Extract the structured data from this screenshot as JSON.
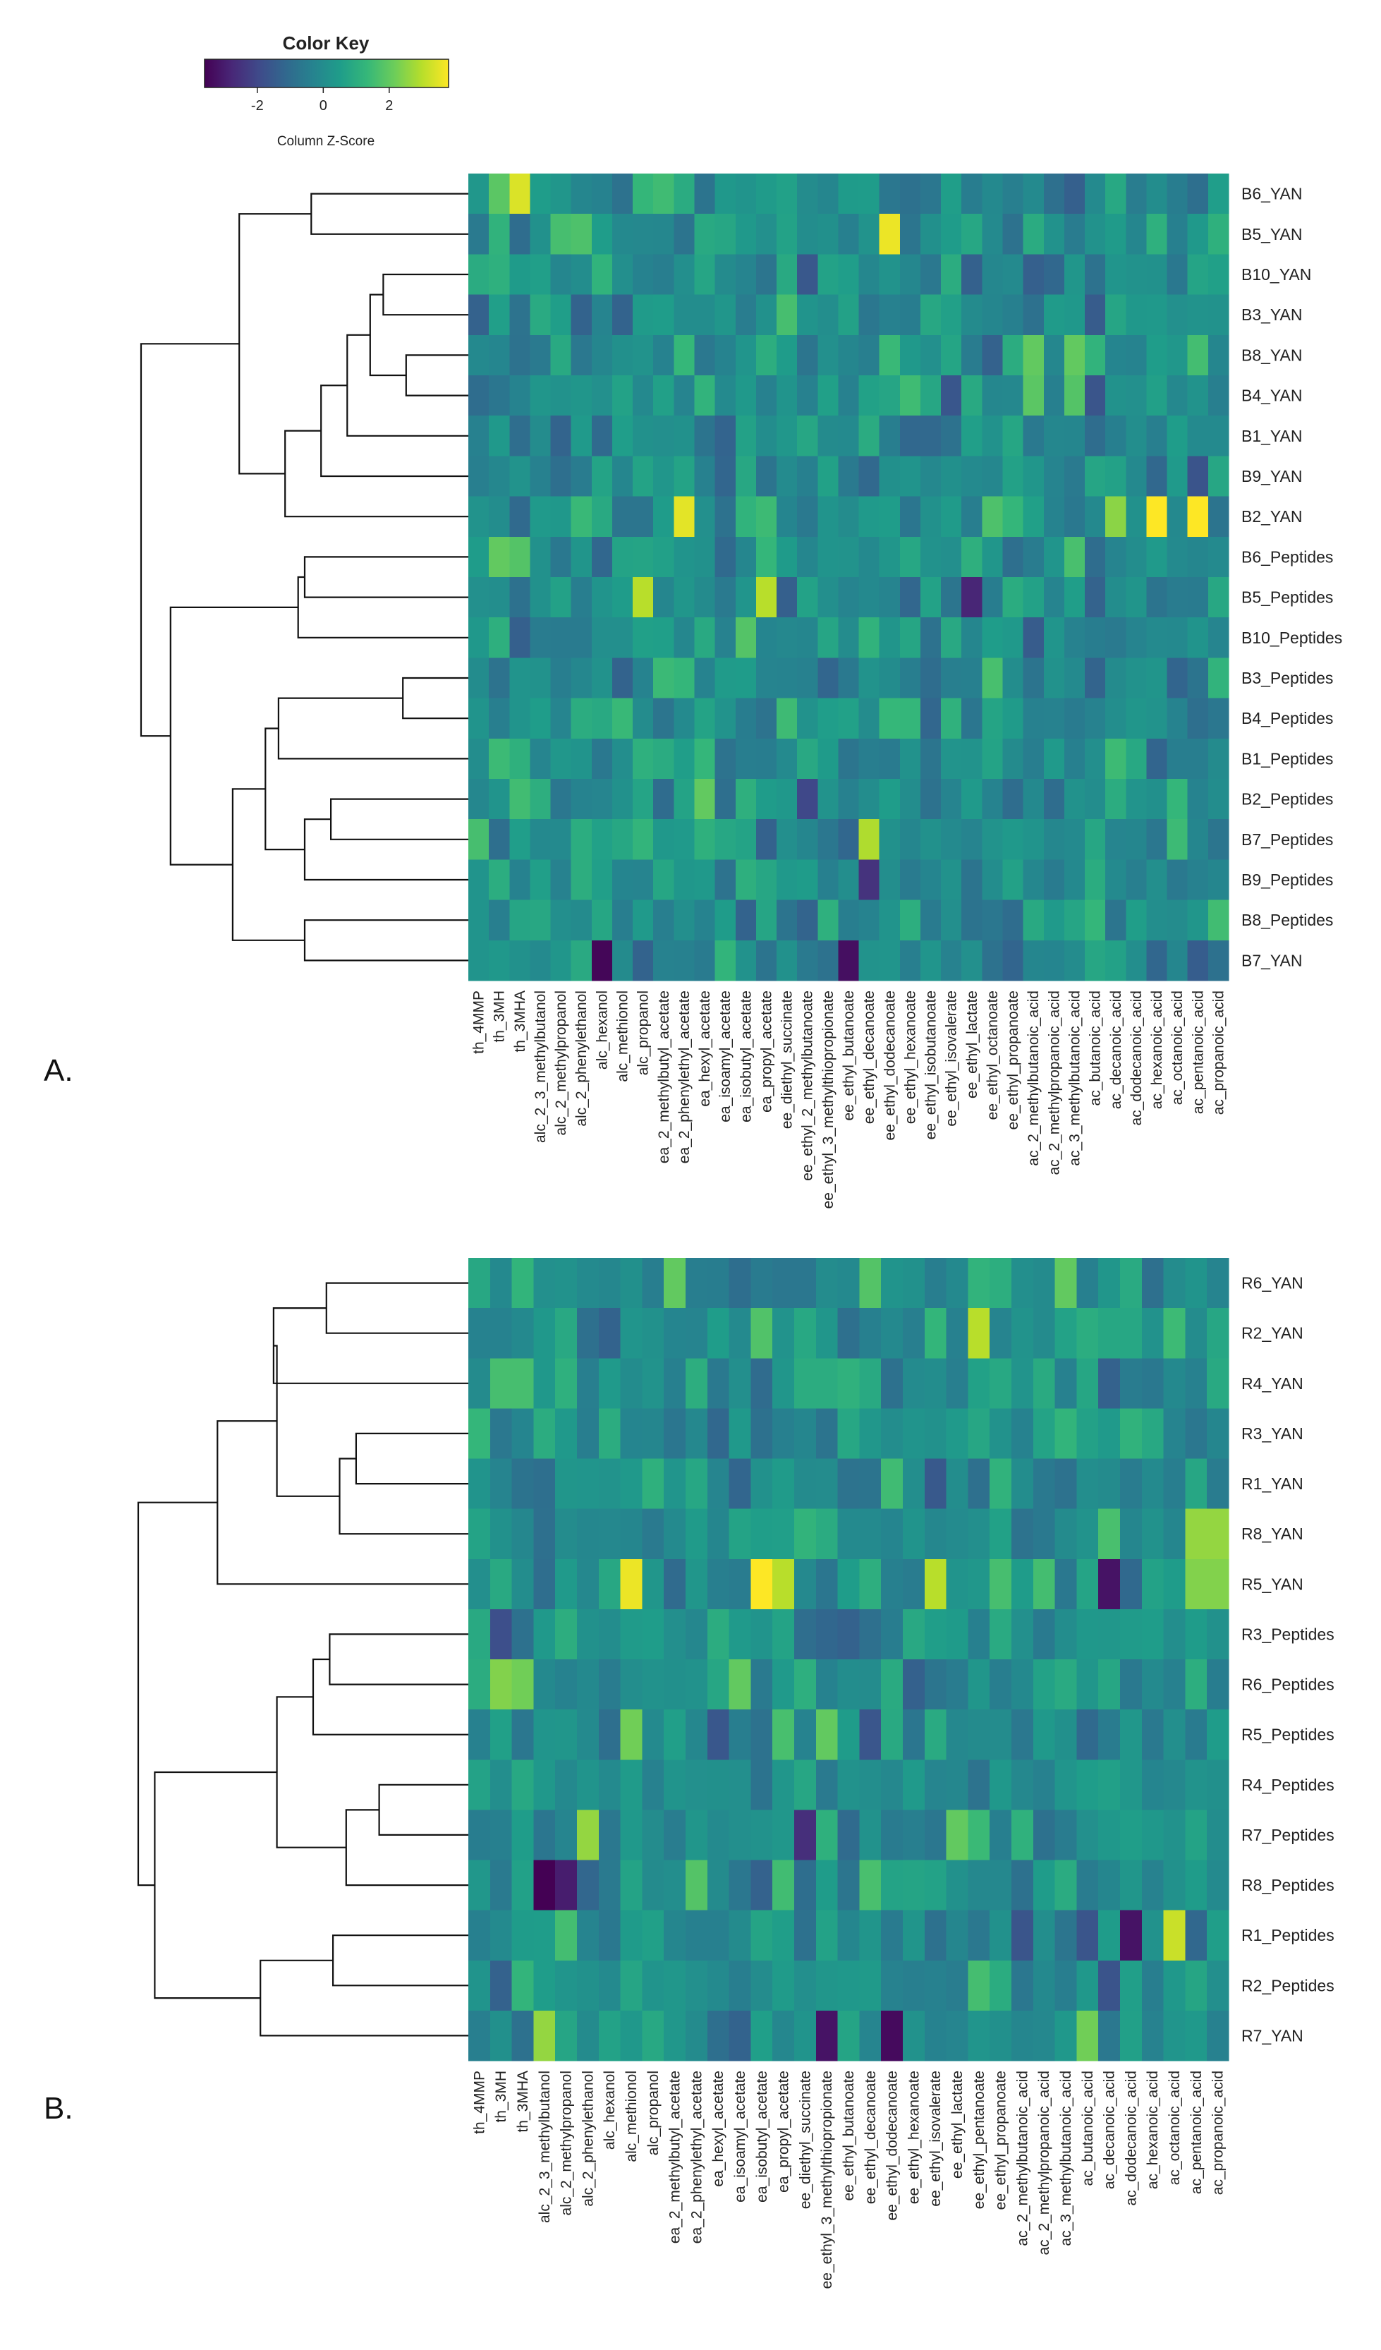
{
  "color_key": {
    "title": "Color Key",
    "axis_label": "Column Z-Score",
    "ticks": [
      "-2",
      "0",
      "2"
    ],
    "tick_values": [
      -2,
      0,
      2
    ],
    "range": [
      -3.6,
      3.8
    ],
    "palette": [
      "#440154",
      "#482777",
      "#3f4a8a",
      "#31688e",
      "#26838f",
      "#1f9d8a",
      "#35b779",
      "#6ccd5a",
      "#b6de2b",
      "#fde725"
    ]
  },
  "panels": [
    {
      "label": "A.",
      "rows": [
        "B6_YAN",
        "B5_YAN",
        "B10_YAN",
        "B3_YAN",
        "B8_YAN",
        "B4_YAN",
        "B1_YAN",
        "B9_YAN",
        "B2_YAN",
        "B6_Peptides",
        "B5_Peptides",
        "B10_Peptides",
        "B3_Peptides",
        "B4_Peptides",
        "B1_Peptides",
        "B2_Peptides",
        "B7_Peptides",
        "B9_Peptides",
        "B8_Peptides",
        "B7_YAN"
      ],
      "columns": [
        "th_4MMP",
        "th_3MH",
        "th_3MHA",
        "alc_2_3_methylbutanol",
        "alc_2_methylpropanol",
        "alc_2_phenylethanol",
        "alc_hexanol",
        "alc_methionol",
        "alc_propanol",
        "ea_2_methylbutyl_acetate",
        "ea_2_phenylethyl_acetate",
        "ea_hexyl_acetate",
        "ea_isoamyl_acetate",
        "ea_isobutyl_acetate",
        "ea_propyl_acetate",
        "ee_diethyl_succinate",
        "ee_ethyl_2_methylbutanoate",
        "ee_ethyl_3_methylthiopropionate",
        "ee_ethyl_butanoate",
        "ee_ethyl_decanoate",
        "ee_ethyl_dodecanoate",
        "ee_ethyl_hexanoate",
        "ee_ethyl_isobutanoate",
        "ee_ethyl_isovalerate",
        "ee_ethyl_lactate",
        "ee_ethyl_octanoate",
        "ee_ethyl_propanoate",
        "ac_2_methylbutanoic_acid",
        "ac_2_methylpropanoic_acid",
        "ac_3_methylbutanoic_acid",
        "ac_butanoic_acid",
        "ac_decanoic_acid",
        "ac_dodecanoic_acid",
        "ac_hexanoic_acid",
        "ac_octanoic_acid",
        "ac_pentanoic_acid",
        "ac_propanoic_acid"
      ],
      "highlights": [
        {
          "row": 0,
          "col": 2,
          "z": 3.4
        },
        {
          "row": 0,
          "col": 1,
          "z": 1.9
        },
        {
          "row": 0,
          "col": 9,
          "z": 1.5
        },
        {
          "row": 1,
          "col": 20,
          "z": 3.6
        },
        {
          "row": 1,
          "col": 4,
          "z": 1.6
        },
        {
          "row": 1,
          "col": 5,
          "z": 1.7
        },
        {
          "row": 3,
          "col": 15,
          "z": 1.6
        },
        {
          "row": 4,
          "col": 27,
          "z": 2.0
        },
        {
          "row": 4,
          "col": 29,
          "z": 2.0
        },
        {
          "row": 5,
          "col": 27,
          "z": 1.9
        },
        {
          "row": 5,
          "col": 29,
          "z": 1.8
        },
        {
          "row": 8,
          "col": 10,
          "z": 3.5
        },
        {
          "row": 8,
          "col": 31,
          "z": 2.5
        },
        {
          "row": 8,
          "col": 33,
          "z": 3.8
        },
        {
          "row": 8,
          "col": 35,
          "z": 3.8
        },
        {
          "row": 8,
          "col": 25,
          "z": 1.7
        },
        {
          "row": 9,
          "col": 1,
          "z": 2.0
        },
        {
          "row": 9,
          "col": 2,
          "z": 1.8
        },
        {
          "row": 10,
          "col": 8,
          "z": 3.0
        },
        {
          "row": 10,
          "col": 14,
          "z": 3.0
        },
        {
          "row": 10,
          "col": 24,
          "z": -2.8
        },
        {
          "row": 11,
          "col": 13,
          "z": 1.8
        },
        {
          "row": 15,
          "col": 11,
          "z": 2.0
        },
        {
          "row": 15,
          "col": 16,
          "z": -2.0
        },
        {
          "row": 16,
          "col": 19,
          "z": 2.9
        },
        {
          "row": 16,
          "col": 0,
          "z": 1.6
        },
        {
          "row": 17,
          "col": 19,
          "z": -2.5
        },
        {
          "row": 19,
          "col": 6,
          "z": -3.5
        },
        {
          "row": 19,
          "col": 18,
          "z": -3.3
        }
      ]
    },
    {
      "label": "B.",
      "rows": [
        "R6_YAN",
        "R2_YAN",
        "R4_YAN",
        "R3_YAN",
        "R1_YAN",
        "R8_YAN",
        "R5_YAN",
        "R3_Peptides",
        "R6_Peptides",
        "R5_Peptides",
        "R4_Peptides",
        "R7_Peptides",
        "R8_Peptides",
        "R1_Peptides",
        "R2_Peptides",
        "R7_YAN"
      ],
      "columns": [
        "th_4MMP",
        "th_3MH",
        "th_3MHA",
        "alc_2_3_methylbutanol",
        "alc_2_methylpropanol",
        "alc_2_phenylethanol",
        "alc_hexanol",
        "alc_methionol",
        "alc_propanol",
        "ea_2_methylbutyl_acetate",
        "ea_2_phenylethyl_acetate",
        "ea_hexyl_acetate",
        "ea_isoamyl_acetate",
        "ea_isobutyl_acetate",
        "ea_propyl_acetate",
        "ee_diethyl_succinate",
        "ee_ethyl_3_methylthiopropionate",
        "ee_ethyl_butanoate",
        "ee_ethyl_decanoate",
        "ee_ethyl_dodecanoate",
        "ee_ethyl_hexanoate",
        "ee_ethyl_isovalerate",
        "ee_ethyl_lactate",
        "ee_ethyl_pentanoate",
        "ee_ethyl_propanoate",
        "ac_2_methylbutanoic_acid",
        "ac_2_methylpropanoic_acid",
        "ac_3_methylbutanoic_acid",
        "ac_butanoic_acid",
        "ac_decanoic_acid",
        "ac_dodecanoic_acid",
        "ac_hexanoic_acid",
        "ac_octanoic_acid",
        "ac_pentanoic_acid",
        "ac_propanoic_acid"
      ],
      "highlights": [
        {
          "row": 0,
          "col": 9,
          "z": 2.0
        },
        {
          "row": 0,
          "col": 18,
          "z": 1.8
        },
        {
          "row": 0,
          "col": 27,
          "z": 2.0
        },
        {
          "row": 1,
          "col": 23,
          "z": 3.0
        },
        {
          "row": 2,
          "col": 1,
          "z": 1.6
        },
        {
          "row": 2,
          "col": 2,
          "z": 1.6
        },
        {
          "row": 5,
          "col": 33,
          "z": 2.6
        },
        {
          "row": 5,
          "col": 34,
          "z": 2.6
        },
        {
          "row": 6,
          "col": 7,
          "z": 3.6
        },
        {
          "row": 6,
          "col": 13,
          "z": 3.8
        },
        {
          "row": 6,
          "col": 14,
          "z": 3.0
        },
        {
          "row": 6,
          "col": 21,
          "z": 3.0
        },
        {
          "row": 6,
          "col": 29,
          "z": -3.2
        },
        {
          "row": 6,
          "col": 33,
          "z": 2.4
        },
        {
          "row": 6,
          "col": 34,
          "z": 2.4
        },
        {
          "row": 8,
          "col": 1,
          "z": 2.4
        },
        {
          "row": 8,
          "col": 2,
          "z": 2.2
        },
        {
          "row": 8,
          "col": 12,
          "z": 2.0
        },
        {
          "row": 9,
          "col": 7,
          "z": 2.2
        },
        {
          "row": 9,
          "col": 16,
          "z": 2.0
        },
        {
          "row": 11,
          "col": 5,
          "z": 2.6
        },
        {
          "row": 11,
          "col": 15,
          "z": -2.6
        },
        {
          "row": 11,
          "col": 22,
          "z": 2.0
        },
        {
          "row": 12,
          "col": 3,
          "z": -3.6
        },
        {
          "row": 12,
          "col": 4,
          "z": -3.0
        },
        {
          "row": 12,
          "col": 10,
          "z": 1.8
        },
        {
          "row": 13,
          "col": 30,
          "z": -3.2
        },
        {
          "row": 13,
          "col": 32,
          "z": 3.2
        },
        {
          "row": 15,
          "col": 3,
          "z": 2.6
        },
        {
          "row": 15,
          "col": 16,
          "z": -3.2
        },
        {
          "row": 15,
          "col": 19,
          "z": -3.4
        },
        {
          "row": 15,
          "col": 28,
          "z": 2.2
        }
      ]
    }
  ]
}
